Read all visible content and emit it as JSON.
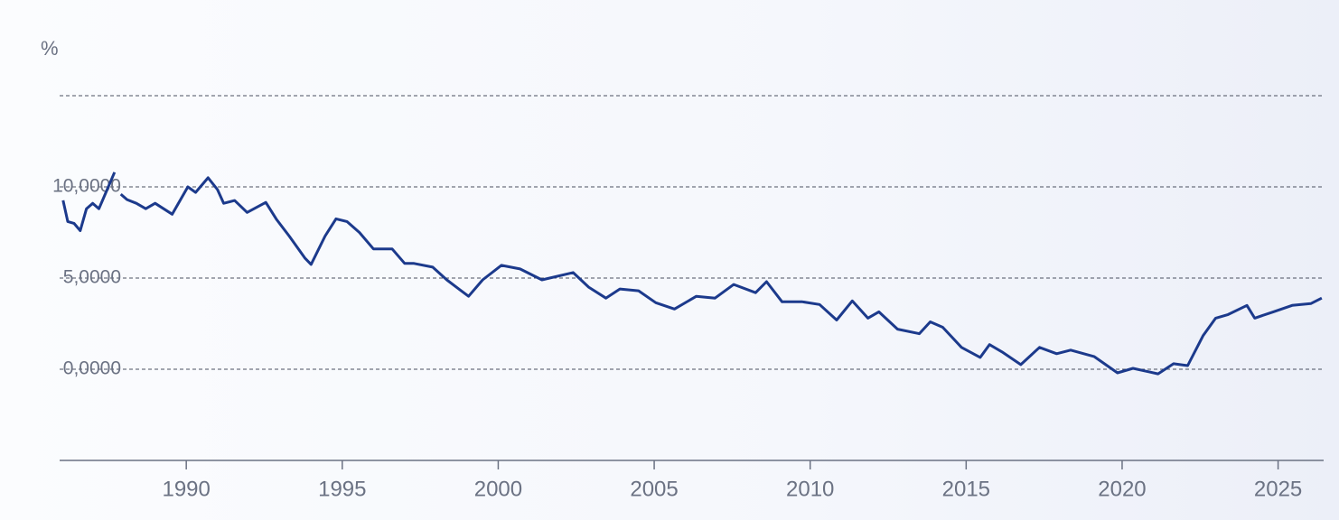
{
  "chart_data": {
    "type": "line",
    "y_unit": "%",
    "x": [
      1986.05,
      1986.2,
      1986.4,
      1986.6,
      1986.8,
      1987.0,
      1987.2,
      1987.4,
      1987.7,
      1987.8,
      1987.9,
      1988.1,
      1988.4,
      1988.7,
      1989.0,
      1989.55,
      1990.05,
      1990.3,
      1990.7,
      1991.0,
      1991.2,
      1991.55,
      1991.95,
      1992.55,
      1992.9,
      1993.3,
      1993.8,
      1994.0,
      1994.45,
      1994.8,
      1995.15,
      1995.55,
      1996.0,
      1996.6,
      1997.0,
      1997.3,
      1997.9,
      1998.35,
      1999.05,
      1999.5,
      2000.1,
      2000.7,
      2001.4,
      2002.4,
      2002.9,
      2003.45,
      2003.9,
      2004.5,
      2005.05,
      2005.65,
      2006.35,
      2006.95,
      2007.55,
      2008.25,
      2008.6,
      2009.1,
      2009.75,
      2010.3,
      2010.85,
      2011.35,
      2011.85,
      2012.2,
      2012.8,
      2013.5,
      2013.85,
      2014.25,
      2014.85,
      2015.45,
      2015.75,
      2016.15,
      2016.75,
      2017.35,
      2017.9,
      2018.35,
      2019.1,
      2019.85,
      2020.35,
      2021.15,
      2021.65,
      2022.1,
      2022.6,
      2023.0,
      2023.4,
      2024.0,
      2024.25,
      2024.85,
      2025.45,
      2026.05,
      2026.4
    ],
    "values": [
      9.26,
      8.1,
      8.0,
      7.6,
      8.8,
      9.1,
      8.8,
      9.6,
      10.8,
      null,
      9.6,
      9.3,
      9.1,
      8.8,
      9.1,
      8.5,
      10.0,
      9.7,
      10.5,
      9.85,
      9.1,
      9.25,
      8.6,
      9.15,
      8.2,
      7.3,
      6.1,
      5.75,
      7.3,
      8.25,
      8.1,
      7.5,
      6.6,
      6.6,
      5.8,
      5.8,
      5.6,
      4.9,
      4.0,
      4.9,
      5.7,
      5.5,
      4.9,
      5.3,
      4.5,
      3.9,
      4.4,
      4.3,
      3.65,
      3.3,
      4.0,
      3.9,
      4.65,
      4.2,
      4.8,
      3.7,
      3.7,
      3.55,
      2.7,
      3.75,
      2.8,
      3.15,
      2.2,
      1.95,
      2.6,
      2.3,
      1.2,
      0.65,
      1.35,
      0.95,
      0.25,
      1.2,
      0.85,
      1.05,
      0.7,
      -0.2,
      0.05,
      -0.25,
      0.3,
      0.2,
      1.85,
      2.8,
      3.0,
      3.5,
      2.8,
      3.15,
      3.5,
      3.6,
      3.9
    ],
    "color": "#1c3a8c",
    "xlim": [
      1985.94,
      2026.46
    ],
    "xticks": [
      1990,
      1995,
      2000,
      2005,
      2010,
      2015,
      2020,
      2025
    ],
    "ylim": [
      -5,
      15
    ],
    "yticks": [
      {
        "value": 0,
        "label": "0,0000"
      },
      {
        "value": 5,
        "label": "5,0000"
      },
      {
        "value": 10,
        "label": "10,0000"
      }
    ],
    "grid": true
  }
}
